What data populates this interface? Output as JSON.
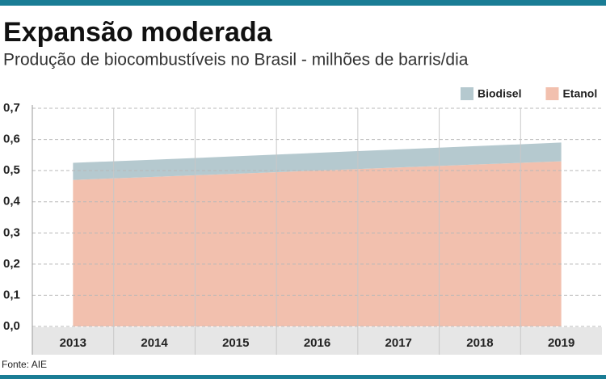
{
  "chart_data": {
    "type": "stacked-area",
    "title": "Expansão moderada",
    "subtitle": "Produção de biocombustíveis no Brasil - milhões de barris/dia",
    "source": "Fonte: AIE",
    "categories": [
      "2013",
      "2014",
      "2015",
      "2016",
      "2017",
      "2018",
      "2019"
    ],
    "series": [
      {
        "name": "Etanol",
        "color": "#f2c0ae",
        "values": [
          0.47,
          0.48,
          0.49,
          0.5,
          0.51,
          0.52,
          0.53
        ]
      },
      {
        "name": "Biodisel",
        "color": "#b5c9cf",
        "values": [
          0.055,
          0.055,
          0.056,
          0.057,
          0.058,
          0.059,
          0.06
        ]
      }
    ],
    "legend_order": [
      1,
      0
    ],
    "ylim": [
      0,
      0.7
    ],
    "yticks": [
      {
        "value": 0,
        "label": "0,0"
      },
      {
        "value": 0.1,
        "label": "0,1"
      },
      {
        "value": 0.2,
        "label": "0,2"
      },
      {
        "value": 0.3,
        "label": "0,3"
      },
      {
        "value": 0.4,
        "label": "0,4"
      },
      {
        "value": 0.5,
        "label": "0,5"
      },
      {
        "value": 0.6,
        "label": "0,6"
      },
      {
        "value": 0.7,
        "label": "0,7"
      }
    ],
    "grid": true
  }
}
